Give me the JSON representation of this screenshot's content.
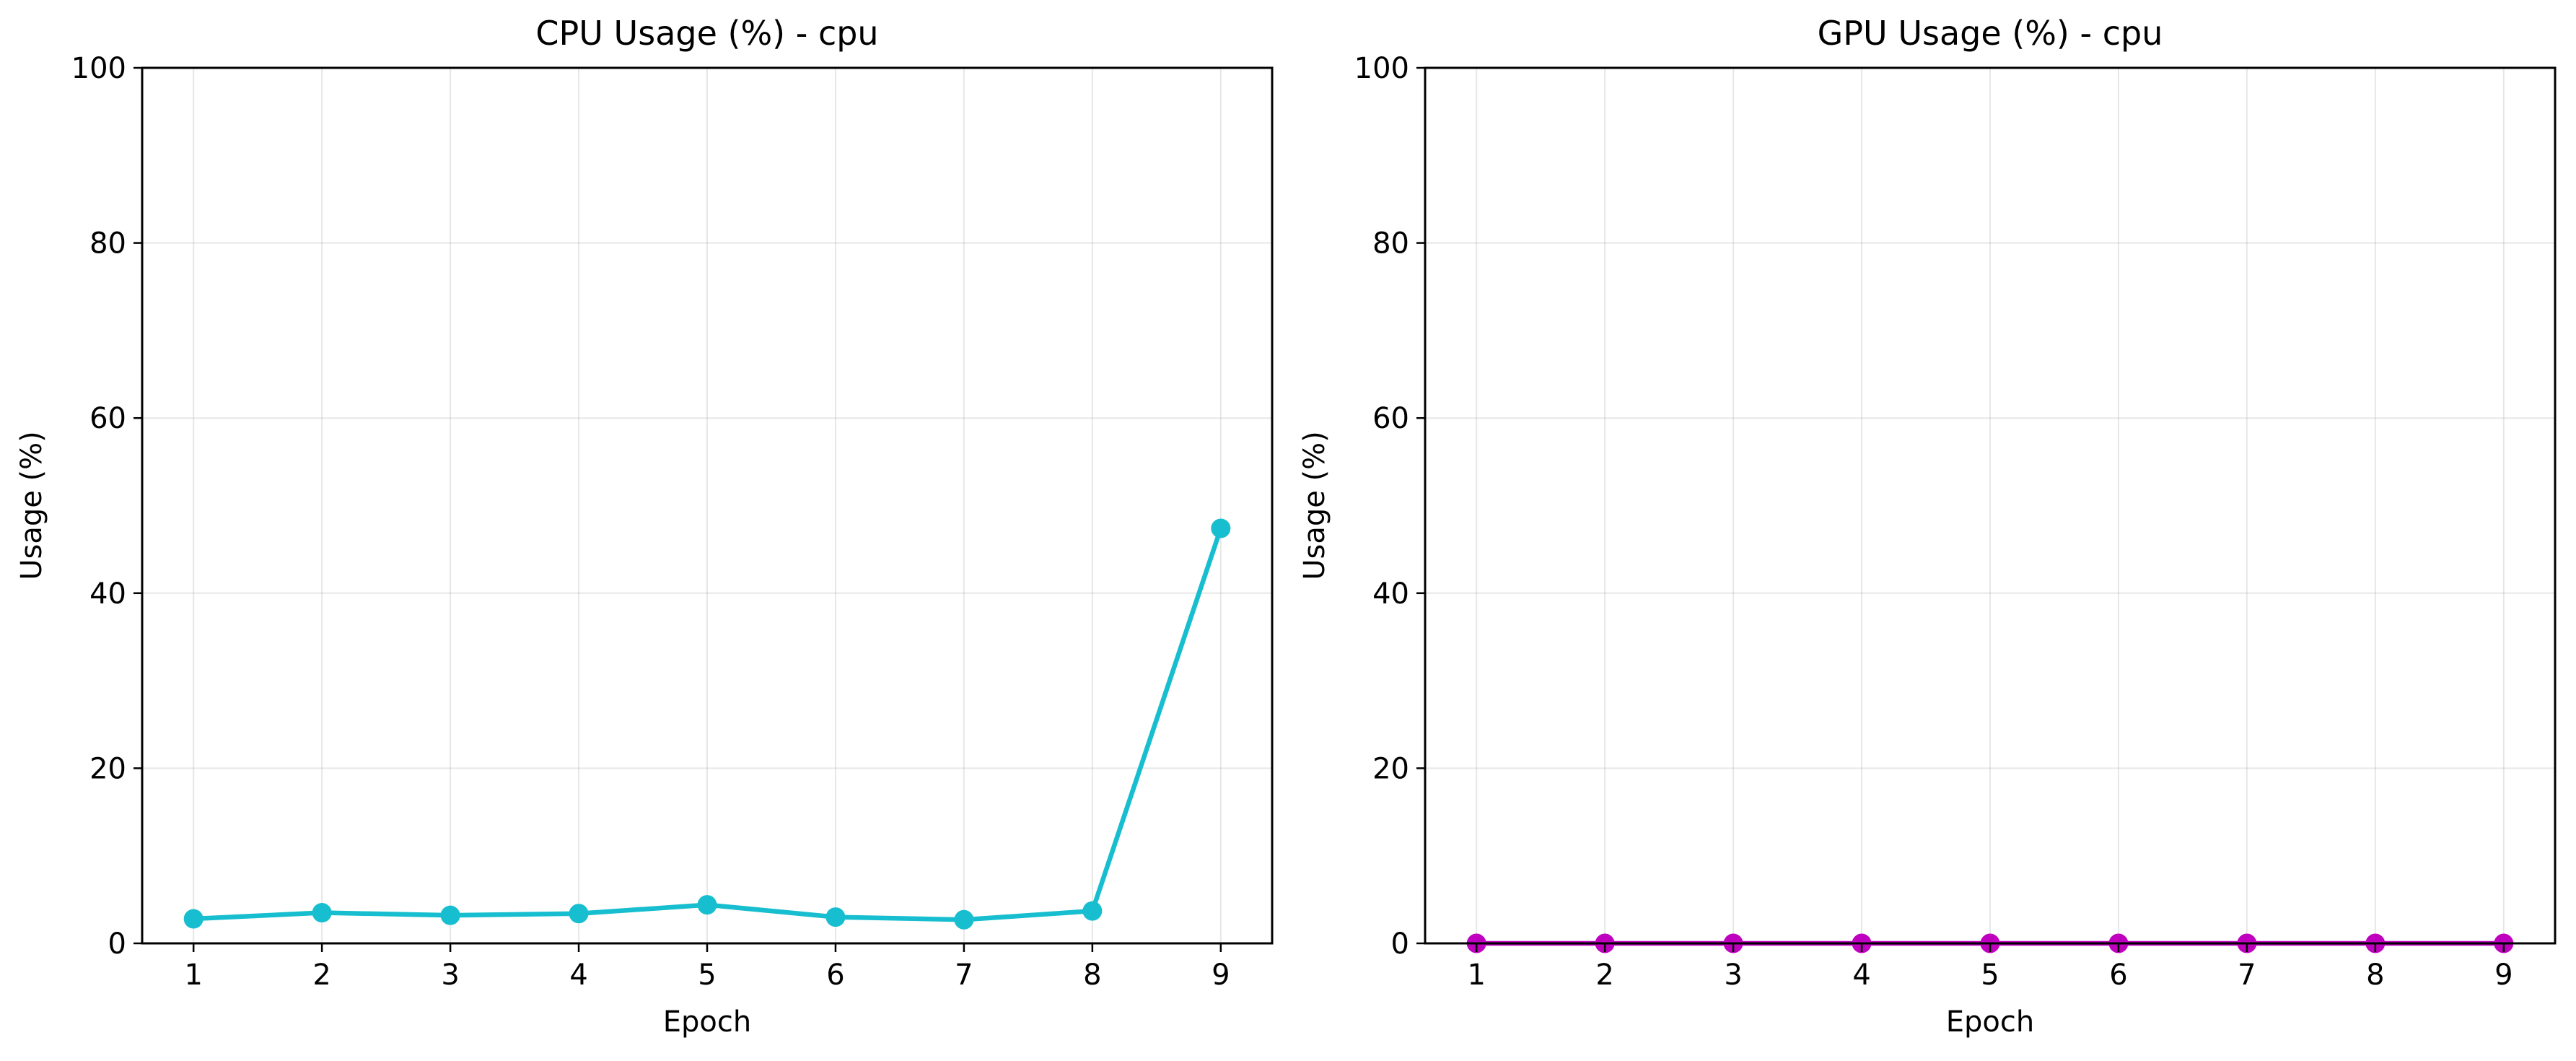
{
  "chart_data": [
    {
      "type": "line",
      "title": "CPU Usage (%) - cpu",
      "xlabel": "Epoch",
      "ylabel": "Usage (%)",
      "xlim": [
        0.6,
        9.4
      ],
      "ylim": [
        0,
        100
      ],
      "grid": true,
      "x_ticks": [
        1,
        2,
        3,
        4,
        5,
        6,
        7,
        8,
        9
      ],
      "y_ticks": [
        0,
        20,
        40,
        60,
        80,
        100
      ],
      "series": [
        {
          "color": "#17becf",
          "x": [
            1,
            2,
            3,
            4,
            5,
            6,
            7,
            8,
            9
          ],
          "y": [
            2.8,
            3.5,
            3.2,
            3.4,
            4.4,
            3.0,
            2.7,
            3.7,
            47.4
          ]
        }
      ]
    },
    {
      "type": "line",
      "title": "GPU Usage (%) - cpu",
      "xlabel": "Epoch",
      "ylabel": "Usage (%)",
      "xlim": [
        0.6,
        9.4
      ],
      "ylim": [
        0,
        100
      ],
      "grid": true,
      "x_ticks": [
        1,
        2,
        3,
        4,
        5,
        6,
        7,
        8,
        9
      ],
      "y_ticks": [
        0,
        20,
        40,
        60,
        80,
        100
      ],
      "series": [
        {
          "color": "#bf00bf",
          "x": [
            1,
            2,
            3,
            4,
            5,
            6,
            7,
            8,
            9
          ],
          "y": [
            0,
            0,
            0,
            0,
            0,
            0,
            0,
            0,
            0
          ]
        }
      ]
    }
  ]
}
